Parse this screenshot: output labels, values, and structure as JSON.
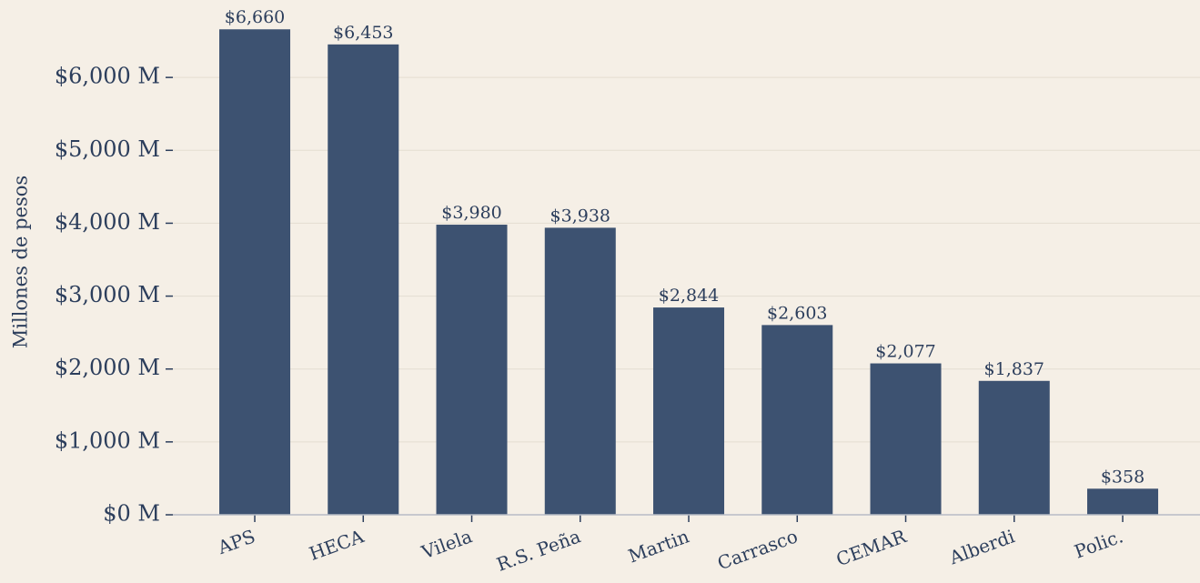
{
  "chart_data": {
    "type": "bar",
    "ylabel": "Millones de pesos",
    "categories": [
      "APS",
      "HECA",
      "Vilela",
      "R.S. Peña",
      "Martin",
      "Carrasco",
      "CEMAR",
      "Alberdi",
      "Polic."
    ],
    "values": [
      6660,
      6453,
      3980,
      3938,
      2844,
      2603,
      2077,
      1837,
      358
    ],
    "value_labels": [
      "$6,660",
      "$6,453",
      "$3,980",
      "$3,938",
      "$2,844",
      "$2,603",
      "$2,077",
      "$1,837",
      "$358"
    ],
    "color": "#3d5271",
    "ylim": [
      0,
      7000
    ],
    "yticks": [
      {
        "value": 0,
        "label": "$0 M"
      },
      {
        "value": 1000,
        "label": "$1,000 M"
      },
      {
        "value": 2000,
        "label": "$2,000 M"
      },
      {
        "value": 3000,
        "label": "$3,000 M"
      },
      {
        "value": 4000,
        "label": "$4,000 M"
      },
      {
        "value": 5000,
        "label": "$5,000 M"
      },
      {
        "value": 6000,
        "label": "$6,000 M"
      }
    ],
    "grid": true
  }
}
